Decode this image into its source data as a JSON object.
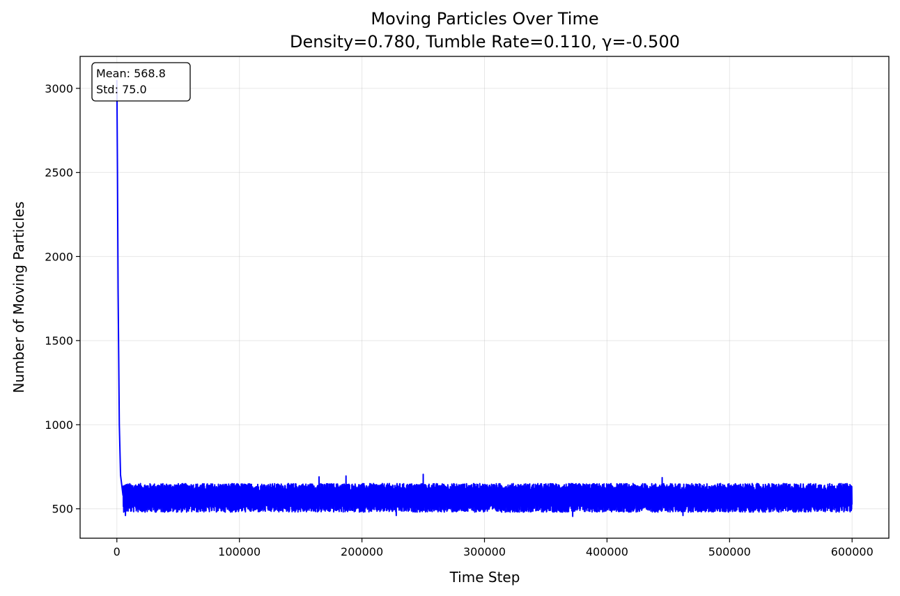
{
  "chart_data": {
    "type": "line",
    "title": "Moving Particles Over Time",
    "subtitle": "Density=0.780, Tumble Rate=0.110, γ=-0.500",
    "xlabel": "Time Step",
    "ylabel": "Number of Moving Particles",
    "xlim": [
      -30000,
      630000
    ],
    "ylim": [
      325,
      3190
    ],
    "xticks": [
      0,
      100000,
      200000,
      300000,
      400000,
      500000,
      600000
    ],
    "xtick_labels": [
      "0",
      "100000",
      "200000",
      "300000",
      "400000",
      "500000",
      "600000"
    ],
    "yticks": [
      500,
      1000,
      1500,
      2000,
      2500,
      3000
    ],
    "ytick_labels": [
      "500",
      "1000",
      "1500",
      "2000",
      "2500",
      "3000"
    ],
    "grid": true,
    "series": [
      {
        "color": "#0000ff",
        "x_range": [
          0,
          600000
        ],
        "initial_value": 3050,
        "initial_decay_points": [
          [
            0,
            3050
          ],
          [
            500,
            2500
          ],
          [
            1000,
            1800
          ],
          [
            2000,
            1000
          ],
          [
            3000,
            700
          ],
          [
            5000,
            580
          ]
        ],
        "steady_state_mean": 568.8,
        "steady_state_band": [
          480,
          650
        ],
        "notable_peaks": [
          [
            165000,
            690
          ],
          [
            187000,
            695
          ],
          [
            250000,
            705
          ],
          [
            445000,
            685
          ]
        ],
        "notable_troughs": [
          [
            7000,
            460
          ],
          [
            228000,
            460
          ],
          [
            372000,
            455
          ],
          [
            462000,
            460
          ]
        ]
      }
    ],
    "stats_box": {
      "mean_label": "Mean: 568.8",
      "std_label": "Std: 75.0",
      "position": "top-left"
    }
  }
}
